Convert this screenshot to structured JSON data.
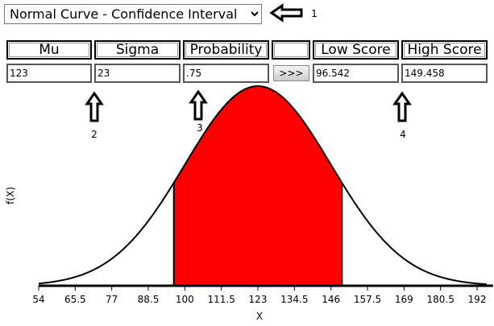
{
  "controls": {
    "distribution": "Normal Curve - Confidence Interval",
    "headers": [
      "Mu",
      "Sigma",
      "Probability",
      "Low Score",
      "High Score"
    ],
    "inputs": [
      "123",
      "23",
      ".75",
      "96.542",
      "149.458"
    ],
    "button": ">>>"
  },
  "callouts": [
    "1",
    "2",
    "3",
    "4"
  ],
  "chart": {
    "x_label": "X",
    "y_label": "f(X)",
    "xlim": [
      54,
      195
    ],
    "xticks": [
      54,
      65.5,
      77,
      88.5,
      100,
      111.5,
      123,
      134.5,
      146,
      157.5,
      169,
      180.5,
      192
    ]
  }
}
